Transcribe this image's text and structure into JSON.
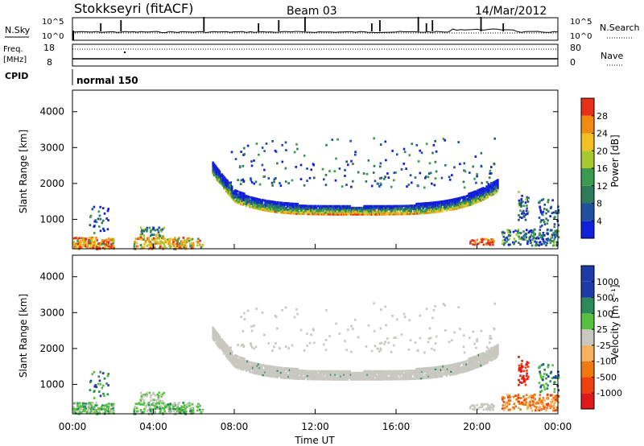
{
  "header": {
    "station": "Stokkseyri (fitACF)",
    "beam": "Beam 03",
    "date": "14/Mar/2012"
  },
  "strip": {
    "nsky_label": "N.Sky",
    "nsearch_label": "N.Search",
    "noise_left_ticks": [
      "10^5",
      "10^0"
    ],
    "noise_right_ticks": [
      "10^5",
      "10^0"
    ],
    "freq_label_line1": "Freq.",
    "freq_label_line2": "[MHz]",
    "freq_ticks": [
      "18",
      "8"
    ],
    "nave_label": "Nave",
    "nave_ticks": [
      "80",
      "0"
    ],
    "cpid_label": "CPID",
    "cpid_value": "normal 150"
  },
  "colors": {
    "power_scale": [
      "#1020d8",
      "#2050a0",
      "#2e7a5a",
      "#3a9a50",
      "#a8c830",
      "#f0c020",
      "#f08a10",
      "#e83018"
    ],
    "velocity_scale": [
      "#e01818",
      "#f04010",
      "#f07a10",
      "#f5b060",
      "#c8c8c0",
      "#58c040",
      "#2a8a5a",
      "#1c3aa8"
    ],
    "ground_scatter": "#c8c8c0"
  },
  "chart_data": [
    {
      "type": "heatmap",
      "panel": "power",
      "ylabel": "Slant Range [km]",
      "yticks": [
        "1000",
        "2000",
        "3000",
        "4000"
      ],
      "ylim": [
        180,
        4600
      ],
      "xlim_hours": [
        0,
        24
      ],
      "colorbar_label": "Power [dB]",
      "colorbar_ticks": [
        "4",
        "8",
        "12",
        "16",
        "20",
        "24",
        "28"
      ],
      "clim": [
        0,
        32
      ],
      "regions": [
        {
          "time_range": [
            "07:00",
            "21:00"
          ],
          "range_km": [
            1150,
            1700
          ],
          "description": "main scatter band",
          "value_db": [
            4,
            28
          ]
        },
        {
          "time_range": [
            "00:00",
            "02:00"
          ],
          "range_km": [
            200,
            700
          ],
          "value_db": [
            4,
            24
          ]
        },
        {
          "time_range": [
            "03:00",
            "06:30"
          ],
          "range_km": [
            200,
            800
          ],
          "value_db": [
            4,
            24
          ]
        },
        {
          "time_range": [
            "19:30",
            "21:00"
          ],
          "range_km": [
            300,
            500
          ],
          "value_db": [
            12,
            28
          ]
        },
        {
          "time_range": [
            "22:00",
            "24:00"
          ],
          "range_km": [
            500,
            1900
          ],
          "value_db": [
            4,
            16
          ]
        },
        {
          "time_range": [
            "07:30",
            "21:00"
          ],
          "range_km": [
            2000,
            3300
          ],
          "value_db": [
            4,
            12
          ]
        }
      ]
    },
    {
      "type": "heatmap",
      "panel": "velocity",
      "ylabel": "Slant Range [km]",
      "yticks": [
        "1000",
        "2000",
        "3000",
        "4000"
      ],
      "ylim": [
        180,
        4600
      ],
      "xlabel": "Time UT",
      "xticks": [
        "00:00",
        "04:00",
        "08:00",
        "12:00",
        "16:00",
        "20:00",
        "00:00"
      ],
      "xlim_hours": [
        0,
        24
      ],
      "colorbar_label": "Velocity [m s⁻¹]",
      "colorbar_ticks": [
        "-1000",
        "-500",
        "-100",
        "-25",
        "25",
        "100",
        "500",
        "1000"
      ],
      "regions": [
        {
          "time_range": [
            "07:00",
            "21:00"
          ],
          "range_km": [
            1150,
            2300
          ],
          "value": "ground scatter"
        },
        {
          "time_range": [
            "00:00",
            "06:30"
          ],
          "range_km": [
            200,
            800
          ],
          "value_ms": [
            25,
            500
          ]
        },
        {
          "time_range": [
            "21:00",
            "24:00"
          ],
          "range_km": [
            300,
            700
          ],
          "value_ms": [
            -500,
            -100
          ]
        },
        {
          "time_range": [
            "22:00",
            "22:30"
          ],
          "range_km": [
            1000,
            1800
          ],
          "value_ms": [
            -1000,
            -500
          ]
        }
      ]
    }
  ]
}
